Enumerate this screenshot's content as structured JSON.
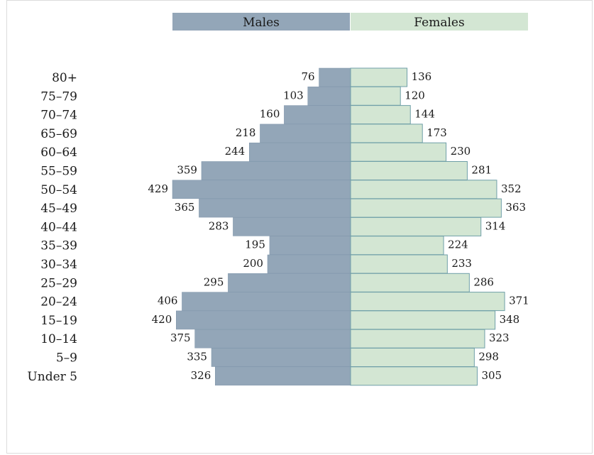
{
  "colors": {
    "male": "#93a6b8",
    "male_stroke": "#7f95aa",
    "female": "#d3e6d3",
    "female_stroke": "#6f9fa8"
  },
  "chart_data": {
    "type": "bar",
    "orientation": "horizontal",
    "layout": "population-pyramid",
    "categories": [
      "80+",
      "75–79",
      "70–74",
      "65–69",
      "60–64",
      "55–59",
      "50–54",
      "45–49",
      "40–44",
      "35–39",
      "30–34",
      "25–29",
      "20–24",
      "15–19",
      "10–14",
      "5–9",
      "Under 5"
    ],
    "series": [
      {
        "name": "Males",
        "values": [
          76,
          103,
          160,
          218,
          244,
          359,
          429,
          365,
          283,
          195,
          200,
          295,
          406,
          420,
          375,
          335,
          326
        ]
      },
      {
        "name": "Females",
        "values": [
          136,
          120,
          144,
          173,
          230,
          281,
          352,
          363,
          314,
          224,
          233,
          286,
          371,
          348,
          323,
          298,
          305
        ]
      }
    ],
    "legend_position": "top",
    "grid": false,
    "xlim": [
      0,
      429
    ]
  }
}
